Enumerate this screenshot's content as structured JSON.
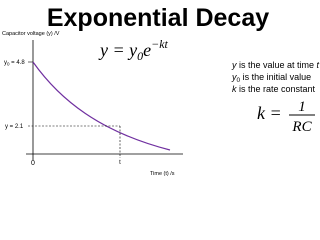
{
  "title": "Exponential Decay",
  "graph": {
    "y_axis_label": "Capacitor voltage (y) /V",
    "x_axis_label": "Time (t) /s",
    "origin_label": "0",
    "t_label": "t",
    "y0_label": {
      "symbol": "y",
      "subscript": "0",
      "text": " = 4.8"
    },
    "y_label": "y = 2.1"
  },
  "formula": {
    "lhs": "y = y",
    "subscript": "0",
    "base": "e",
    "exponent": "−kt"
  },
  "notes": [
    {
      "symbol": "y",
      "text": " is the value at time ",
      "end": "t"
    },
    {
      "symbol": "y",
      "subscript": "0",
      "text": " is the initial value"
    },
    {
      "symbol": "k",
      "text": " is the rate constant"
    }
  ],
  "rate": {
    "lhs": "k =",
    "numerator": "1",
    "denominator": "RC"
  }
}
